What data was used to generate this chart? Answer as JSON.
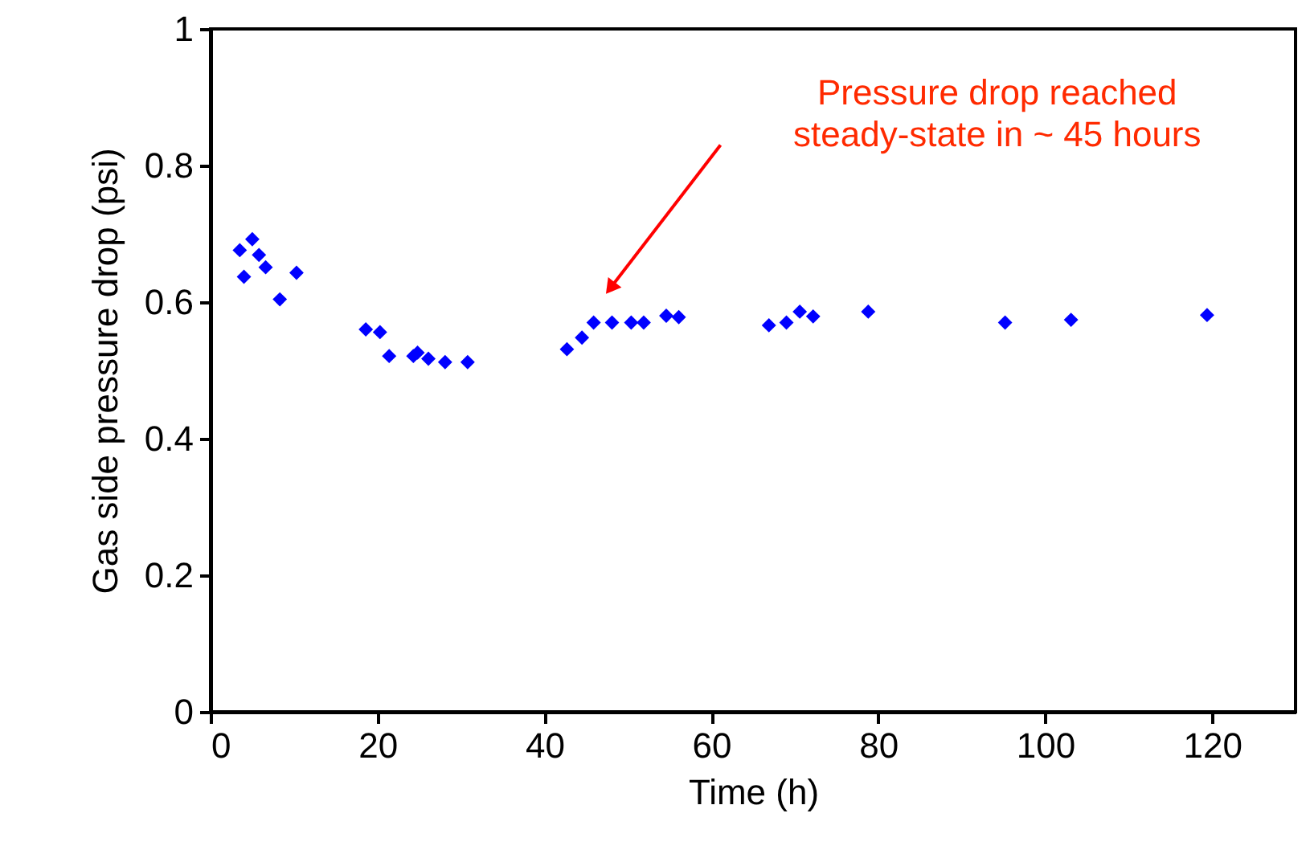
{
  "chart_data": {
    "type": "scatter",
    "xlabel": "Time (h)",
    "ylabel": "Gas side pressure drop (psi)",
    "marker": "diamond",
    "grid": false,
    "xlim": [
      0,
      130
    ],
    "xticks": [
      0,
      20,
      40,
      60,
      80,
      100,
      120
    ],
    "ylim": [
      0,
      1
    ],
    "yticks": [
      0,
      0.2,
      0.4,
      0.6,
      0.8,
      1
    ],
    "x": [
      3.5,
      5.0,
      5.8,
      4.0,
      6.6,
      10.3,
      8.3,
      18.6,
      20.3,
      21.4,
      24.3,
      24.8,
      26.1,
      28.1,
      30.8,
      42.7,
      44.5,
      45.9,
      48.1,
      50.4,
      51.9,
      54.6,
      56.1,
      66.9,
      69.0,
      70.6,
      72.2,
      78.8,
      95.2,
      103.1,
      119.4
    ],
    "series": [
      {
        "color": "#0000ff",
        "values": [
          0.676,
          0.692,
          0.669,
          0.637,
          0.651,
          0.643,
          0.604,
          0.56,
          0.556,
          0.521,
          0.521,
          0.526,
          0.517,
          0.512,
          0.512,
          0.531,
          0.548,
          0.57,
          0.57,
          0.57,
          0.57,
          0.58,
          0.578,
          0.566,
          0.57,
          0.586,
          0.579,
          0.586,
          0.57,
          0.574,
          0.581
        ]
      }
    ],
    "annotations": [
      "Pressure drop reached\nsteady-state in ~ 45 hours"
    ]
  }
}
